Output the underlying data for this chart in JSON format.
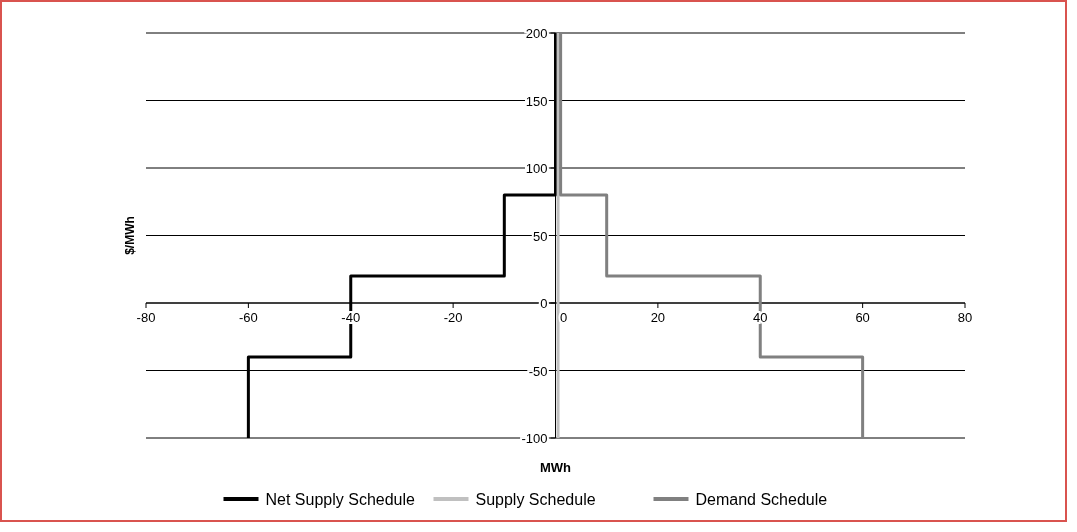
{
  "chart_data": {
    "type": "line",
    "xlabel": "MWh",
    "ylabel": "$/MWh",
    "xlim": [
      -80,
      80
    ],
    "xticks": [
      -80,
      -60,
      -40,
      -20,
      0,
      20,
      40,
      60,
      80
    ],
    "ylim": [
      -100,
      200
    ],
    "yticks": [
      -100,
      -50,
      0,
      50,
      100,
      150,
      200
    ],
    "grid": "y",
    "legend": "bottom",
    "marker": "none",
    "line_style": "solid",
    "series": [
      {
        "name": "Net Supply Schedule",
        "color": "#000000",
        "x": [
          0,
          0,
          -10,
          -10,
          -40,
          -40,
          -60,
          -60
        ],
        "values": [
          200,
          80,
          80,
          20,
          20,
          -40,
          -40,
          -100
        ]
      },
      {
        "name": "Supply Schedule",
        "color": "#c0c0c0",
        "x": [
          0.5,
          0.5
        ],
        "values": [
          200,
          -100
        ]
      },
      {
        "name": "Demand Schedule",
        "color": "#808080",
        "x": [
          1,
          1,
          10,
          10,
          40,
          40,
          60,
          60
        ],
        "values": [
          200,
          80,
          80,
          20,
          20,
          -40,
          -40,
          -100
        ]
      }
    ]
  }
}
